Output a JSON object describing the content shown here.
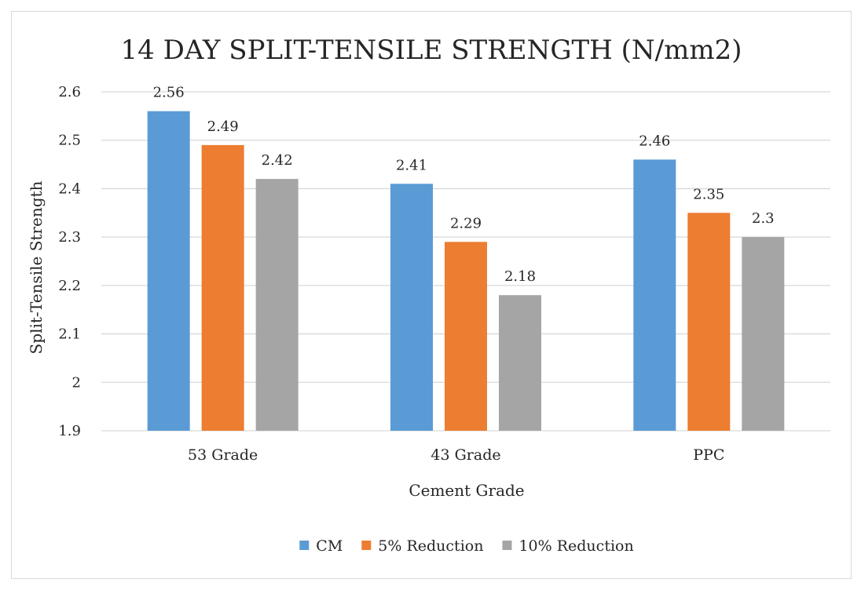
{
  "chart_data": {
    "type": "bar",
    "title": "14 DAY SPLIT-TENSILE STRENGTH (N/mm2)",
    "xlabel": "Cement Grade",
    "ylabel": "Split-Tensile Strength",
    "categories": [
      "53 Grade",
      "43 Grade",
      "PPC"
    ],
    "series": [
      {
        "name": "CM",
        "values": [
          2.56,
          2.41,
          2.46
        ],
        "labels": [
          "2.56",
          "2.41",
          "2.46"
        ],
        "color": "#5B9BD5"
      },
      {
        "name": "5% Reduction",
        "values": [
          2.49,
          2.29,
          2.35
        ],
        "labels": [
          "2.49",
          "2.29",
          "2.35"
        ],
        "color": "#ED7D31"
      },
      {
        "name": "10% Reduction",
        "values": [
          2.42,
          2.18,
          2.3
        ],
        "labels": [
          "2.42",
          "2.18",
          "2.3"
        ],
        "color": "#A5A5A5"
      }
    ],
    "ylim": [
      1.9,
      2.6
    ],
    "yticks": [
      1.9,
      2,
      2.1,
      2.2,
      2.3,
      2.4,
      2.5,
      2.6
    ],
    "ytick_labels": [
      "1.9",
      "2",
      "2.1",
      "2.2",
      "2.3",
      "2.4",
      "2.5",
      "2.6"
    ],
    "grid": true,
    "legend_position": "bottom",
    "gridline_color": "#d9d9d9"
  }
}
